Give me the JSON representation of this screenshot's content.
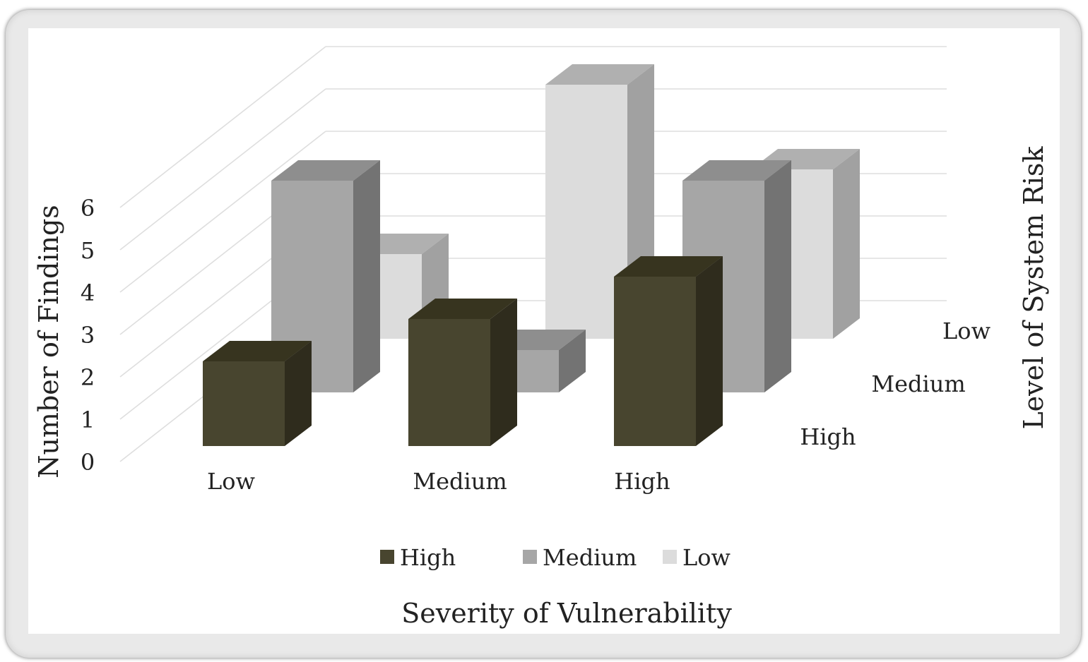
{
  "chart_data": {
    "type": "bar",
    "subtype": "3d-column",
    "xlabel": "Severity of Vulnerability",
    "ylabel": "Number of Findings",
    "zlabel": "Level of System Risk",
    "categories": [
      "Low",
      "Medium",
      "High"
    ],
    "y_ticks": [
      "0",
      "1",
      "2",
      "3",
      "4",
      "5",
      "6"
    ],
    "ylim": [
      0,
      6
    ],
    "depth_labels": [
      "High",
      "Medium",
      "Low"
    ],
    "series": [
      {
        "name": "High",
        "values": [
          2,
          3,
          4
        ],
        "color": "#48452f"
      },
      {
        "name": "Medium",
        "values": [
          5,
          1,
          5
        ],
        "color": "#a6a6a6"
      },
      {
        "name": "Low",
        "values": [
          2,
          6,
          4
        ],
        "color": "#dcdcdc"
      }
    ],
    "grid": true,
    "legend": {
      "position": "bottom",
      "items": [
        {
          "label": "High",
          "color": "#48452f"
        },
        {
          "label": "Medium",
          "color": "#a6a6a6"
        },
        {
          "label": "Low",
          "color": "#dcdcdc"
        }
      ]
    }
  }
}
